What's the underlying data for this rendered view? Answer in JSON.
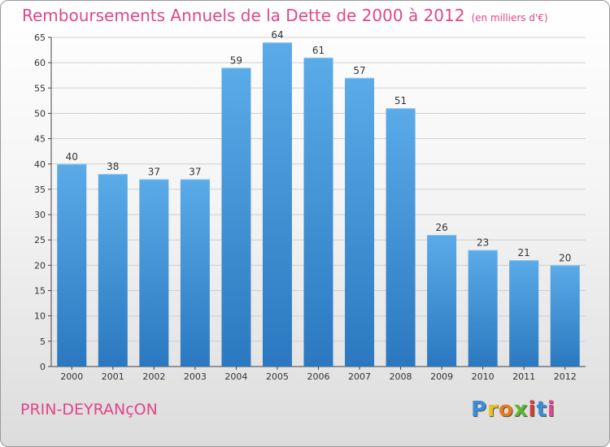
{
  "title": "Remboursements Annuels de la Dette de 2000 à 2012",
  "unit": "(en milliers d'€)",
  "commune": "PRIN-DEYRANçON",
  "brand": [
    "P",
    "r",
    "o",
    "x",
    "i",
    "t",
    "i"
  ],
  "colors": {
    "title": "#e0468a",
    "bar_top": "#5aabe8",
    "bar_bottom": "#2b78c0"
  },
  "chart_data": {
    "type": "bar",
    "title": "Remboursements Annuels de la Dette de 2000 à 2012",
    "xlabel": "",
    "ylabel": "",
    "categories": [
      "2000",
      "2001",
      "2002",
      "2003",
      "2004",
      "2005",
      "2006",
      "2007",
      "2008",
      "2009",
      "2010",
      "2011",
      "2012"
    ],
    "values": [
      40,
      38,
      37,
      37,
      59,
      64,
      61,
      57,
      51,
      26,
      23,
      21,
      20
    ],
    "ylim": [
      0,
      65
    ],
    "yticks": [
      0,
      5,
      10,
      15,
      20,
      25,
      30,
      35,
      40,
      45,
      50,
      55,
      60,
      65
    ],
    "grid": true,
    "legend": "none"
  }
}
